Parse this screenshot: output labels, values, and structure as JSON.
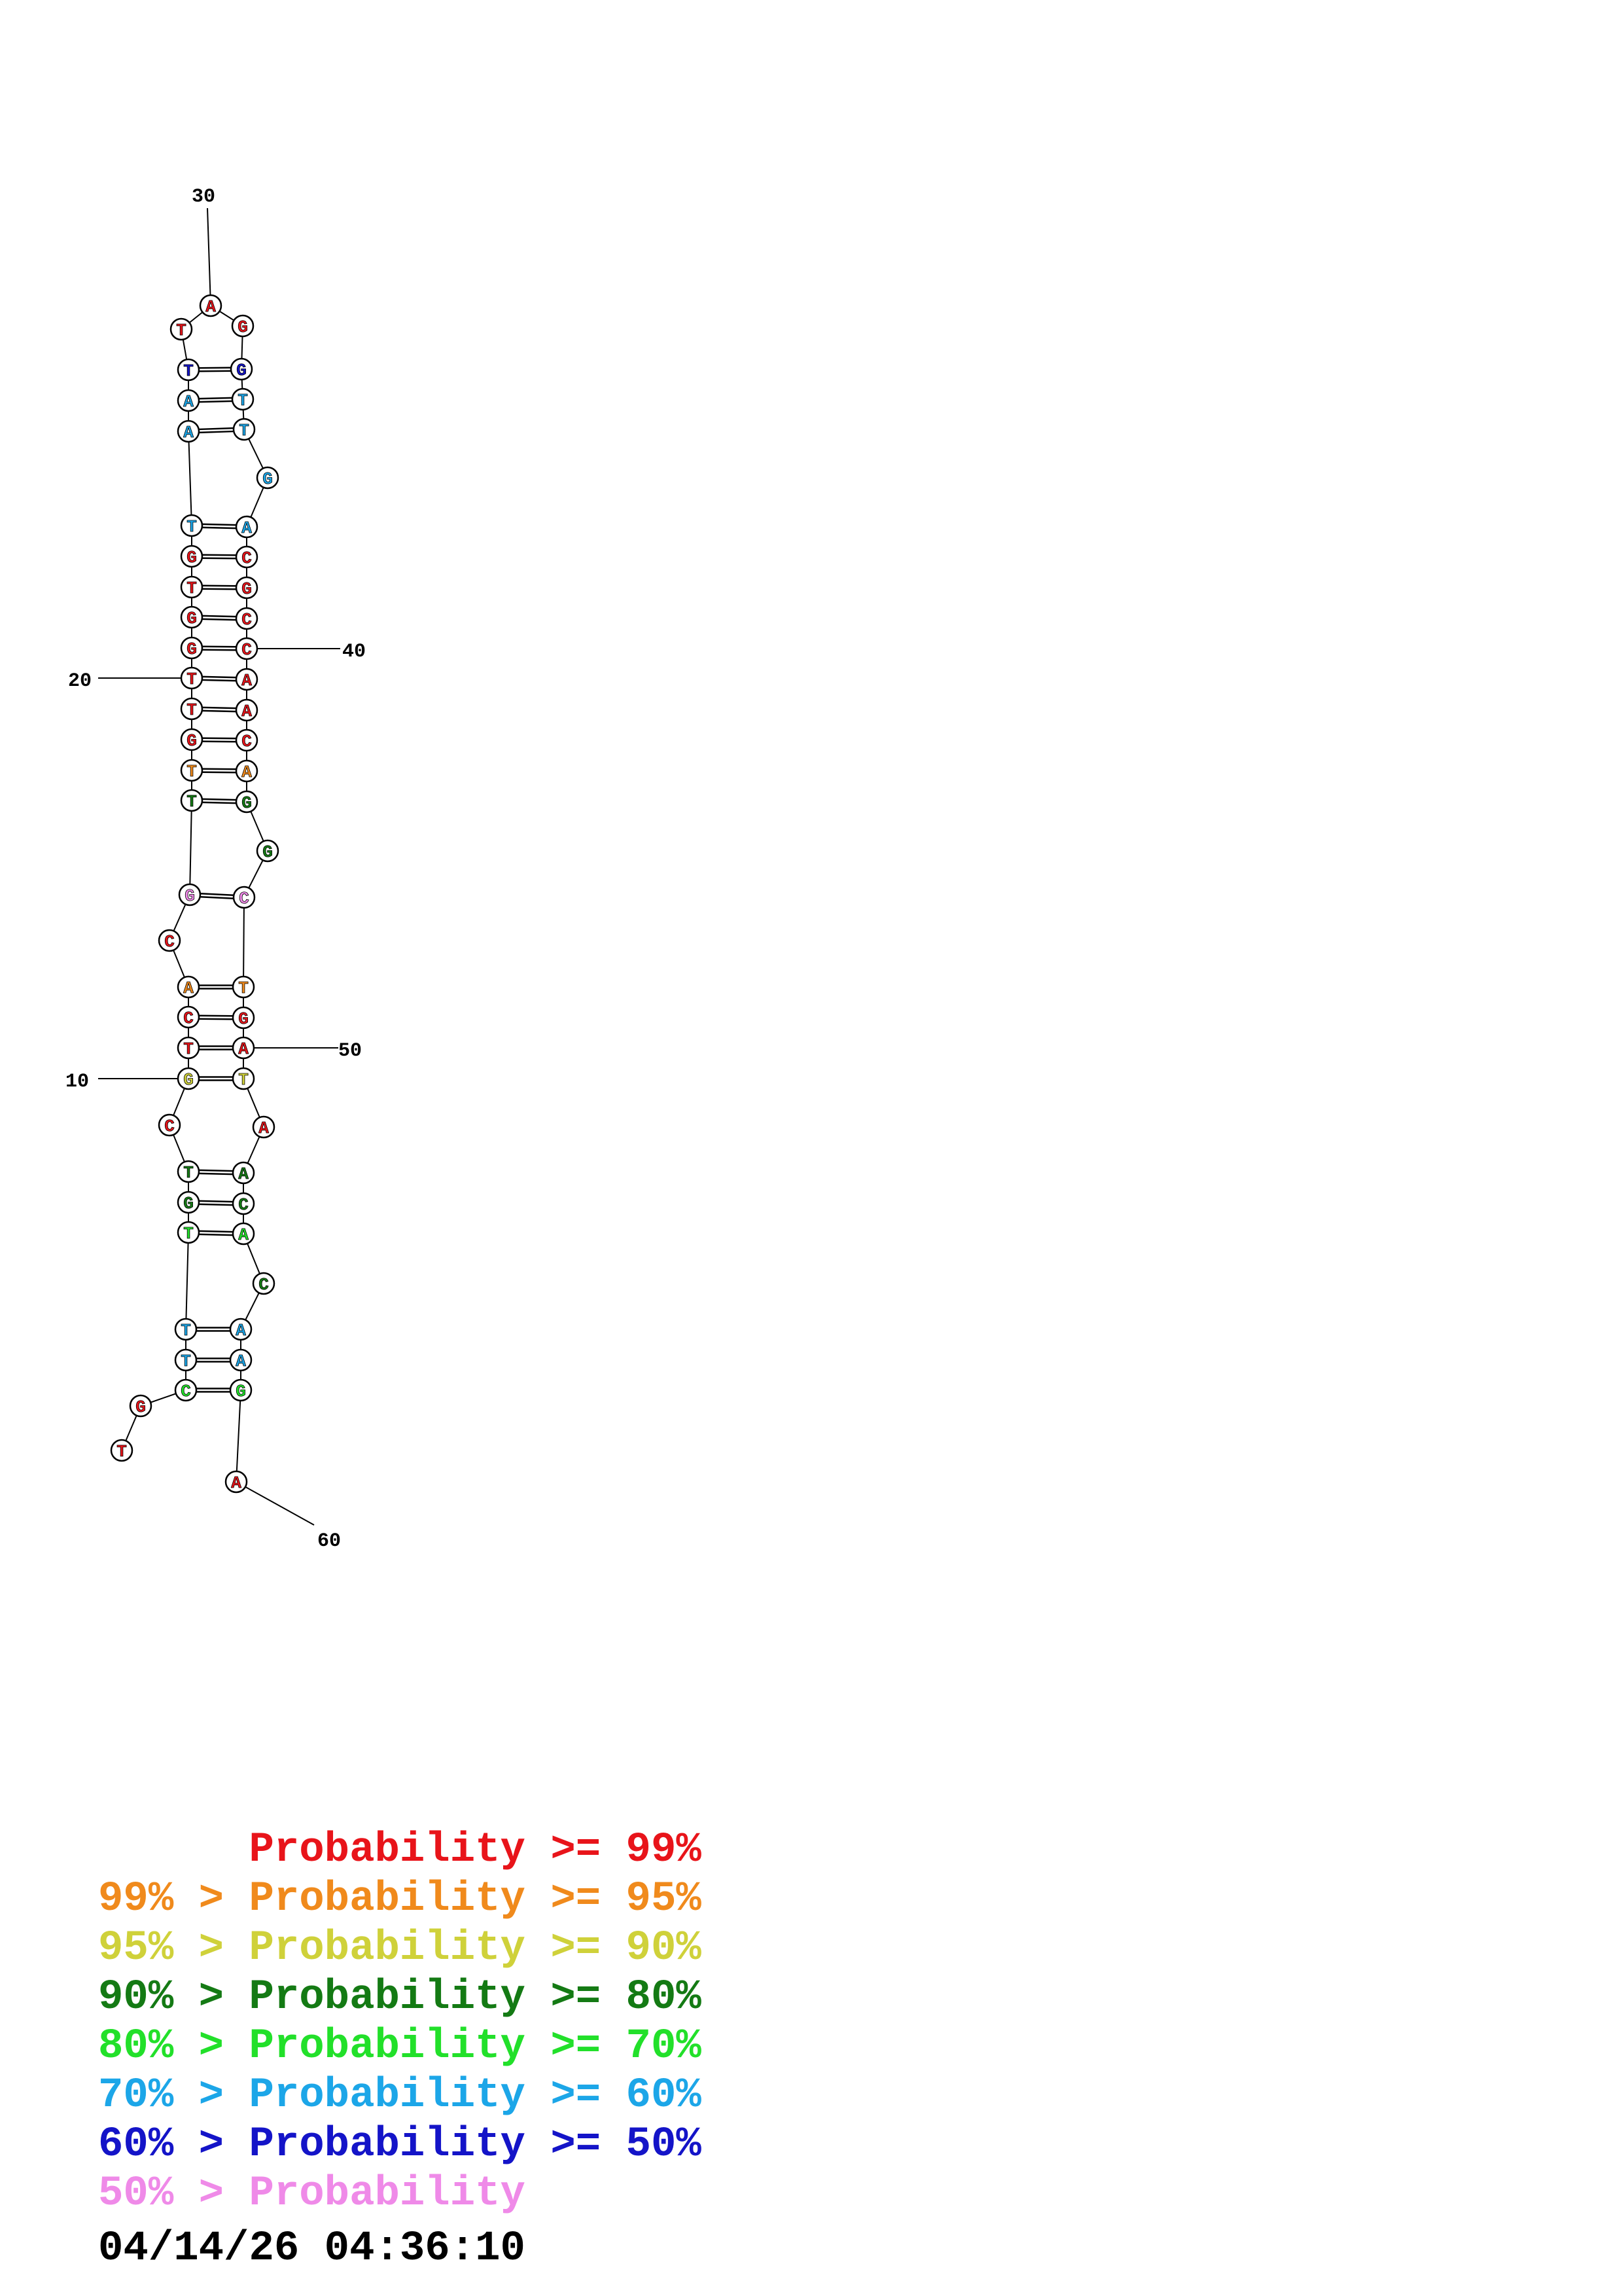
{
  "palette": {
    "red": "#e8141a",
    "orange": "#f08a1c",
    "yellow": "#cfd13a",
    "dark_green": "#147a14",
    "green": "#22e02a",
    "cyan": "#1ca6e8",
    "blue": "#1414c8",
    "pink": "#ef8ae8",
    "line": "#000000"
  },
  "bases": [
    {
      "n": 1,
      "base": "T",
      "color": "red"
    },
    {
      "n": 2,
      "base": "G",
      "color": "red"
    },
    {
      "n": 3,
      "base": "C",
      "color": "green"
    },
    {
      "n": 4,
      "base": "T",
      "color": "cyan"
    },
    {
      "n": 5,
      "base": "T",
      "color": "cyan"
    },
    {
      "n": 6,
      "base": "T",
      "color": "green"
    },
    {
      "n": 7,
      "base": "G",
      "color": "dark_green"
    },
    {
      "n": 8,
      "base": "T",
      "color": "dark_green"
    },
    {
      "n": 9,
      "base": "C",
      "color": "red"
    },
    {
      "n": 10,
      "base": "G",
      "color": "yellow"
    },
    {
      "n": 11,
      "base": "T",
      "color": "red"
    },
    {
      "n": 12,
      "base": "C",
      "color": "red"
    },
    {
      "n": 13,
      "base": "A",
      "color": "orange"
    },
    {
      "n": 14,
      "base": "C",
      "color": "red"
    },
    {
      "n": 15,
      "base": "G",
      "color": "pink"
    },
    {
      "n": 16,
      "base": "T",
      "color": "dark_green"
    },
    {
      "n": 17,
      "base": "T",
      "color": "orange"
    },
    {
      "n": 18,
      "base": "G",
      "color": "red"
    },
    {
      "n": 19,
      "base": "T",
      "color": "red"
    },
    {
      "n": 20,
      "base": "T",
      "color": "red"
    },
    {
      "n": 21,
      "base": "G",
      "color": "red"
    },
    {
      "n": 22,
      "base": "G",
      "color": "red"
    },
    {
      "n": 23,
      "base": "T",
      "color": "red"
    },
    {
      "n": 24,
      "base": "G",
      "color": "red"
    },
    {
      "n": 25,
      "base": "T",
      "color": "cyan"
    },
    {
      "n": 26,
      "base": "A",
      "color": "cyan"
    },
    {
      "n": 27,
      "base": "A",
      "color": "cyan"
    },
    {
      "n": 28,
      "base": "T",
      "color": "blue"
    },
    {
      "n": 29,
      "base": "T",
      "color": "red"
    },
    {
      "n": 30,
      "base": "A",
      "color": "red"
    },
    {
      "n": 31,
      "base": "G",
      "color": "red"
    },
    {
      "n": 32,
      "base": "G",
      "color": "blue"
    },
    {
      "n": 33,
      "base": "T",
      "color": "cyan"
    },
    {
      "n": 34,
      "base": "T",
      "color": "cyan"
    },
    {
      "n": 35,
      "base": "G",
      "color": "cyan"
    },
    {
      "n": 36,
      "base": "A",
      "color": "cyan"
    },
    {
      "n": 37,
      "base": "C",
      "color": "red"
    },
    {
      "n": 38,
      "base": "G",
      "color": "red"
    },
    {
      "n": 39,
      "base": "C",
      "color": "red"
    },
    {
      "n": 40,
      "base": "C",
      "color": "red"
    },
    {
      "n": 41,
      "base": "A",
      "color": "red"
    },
    {
      "n": 42,
      "base": "A",
      "color": "red"
    },
    {
      "n": 43,
      "base": "C",
      "color": "red"
    },
    {
      "n": 44,
      "base": "A",
      "color": "orange"
    },
    {
      "n": 45,
      "base": "G",
      "color": "dark_green"
    },
    {
      "n": 46,
      "base": "G",
      "color": "dark_green"
    },
    {
      "n": 47,
      "base": "C",
      "color": "pink"
    },
    {
      "n": 48,
      "base": "T",
      "color": "orange"
    },
    {
      "n": 49,
      "base": "G",
      "color": "red"
    },
    {
      "n": 50,
      "base": "A",
      "color": "red"
    },
    {
      "n": 51,
      "base": "T",
      "color": "yellow"
    },
    {
      "n": 52,
      "base": "A",
      "color": "red"
    },
    {
      "n": 53,
      "base": "A",
      "color": "dark_green"
    },
    {
      "n": 54,
      "base": "C",
      "color": "dark_green"
    },
    {
      "n": 55,
      "base": "A",
      "color": "green"
    },
    {
      "n": 56,
      "base": "C",
      "color": "dark_green"
    },
    {
      "n": 57,
      "base": "A",
      "color": "cyan"
    },
    {
      "n": 58,
      "base": "A",
      "color": "cyan"
    },
    {
      "n": 59,
      "base": "G",
      "color": "green"
    },
    {
      "n": 60,
      "base": "A",
      "color": "red"
    }
  ],
  "pairs": [
    [
      3,
      59
    ],
    [
      4,
      58
    ],
    [
      5,
      57
    ],
    [
      6,
      55
    ],
    [
      7,
      54
    ],
    [
      8,
      53
    ],
    [
      10,
      51
    ],
    [
      11,
      50
    ],
    [
      12,
      49
    ],
    [
      13,
      48
    ],
    [
      15,
      47
    ],
    [
      16,
      45
    ],
    [
      17,
      44
    ],
    [
      18,
      43
    ],
    [
      19,
      42
    ],
    [
      20,
      41
    ],
    [
      21,
      40
    ],
    [
      22,
      39
    ],
    [
      23,
      38
    ],
    [
      24,
      37
    ],
    [
      25,
      36
    ],
    [
      26,
      34
    ],
    [
      27,
      33
    ],
    [
      28,
      32
    ]
  ],
  "position_labels": [
    {
      "text": "10",
      "n": 10
    },
    {
      "text": "20",
      "n": 20
    },
    {
      "text": "30",
      "n": 30
    },
    {
      "text": "40",
      "n": 40
    },
    {
      "text": "50",
      "n": 50
    },
    {
      "text": "60",
      "n": 60
    }
  ],
  "legend": [
    {
      "left": "",
      "right": "Probability >= 99%",
      "color": "red"
    },
    {
      "left": "99% > ",
      "right": "Probability >= 95%",
      "color": "orange"
    },
    {
      "left": "95% > ",
      "right": "Probability >= 90%",
      "color": "yellow"
    },
    {
      "left": "90% > ",
      "right": "Probability >= 80%",
      "color": "dark_green"
    },
    {
      "left": "80% > ",
      "right": "Probability >= 70%",
      "color": "green"
    },
    {
      "left": "70% > ",
      "right": "Probability >= 60%",
      "color": "cyan"
    },
    {
      "left": "60% > ",
      "right": "Probability >= 50%",
      "color": "blue"
    },
    {
      "left": "50% > ",
      "right": "Probability",
      "color": "pink"
    }
  ],
  "timestamp": "04/14/26 04:36:10"
}
